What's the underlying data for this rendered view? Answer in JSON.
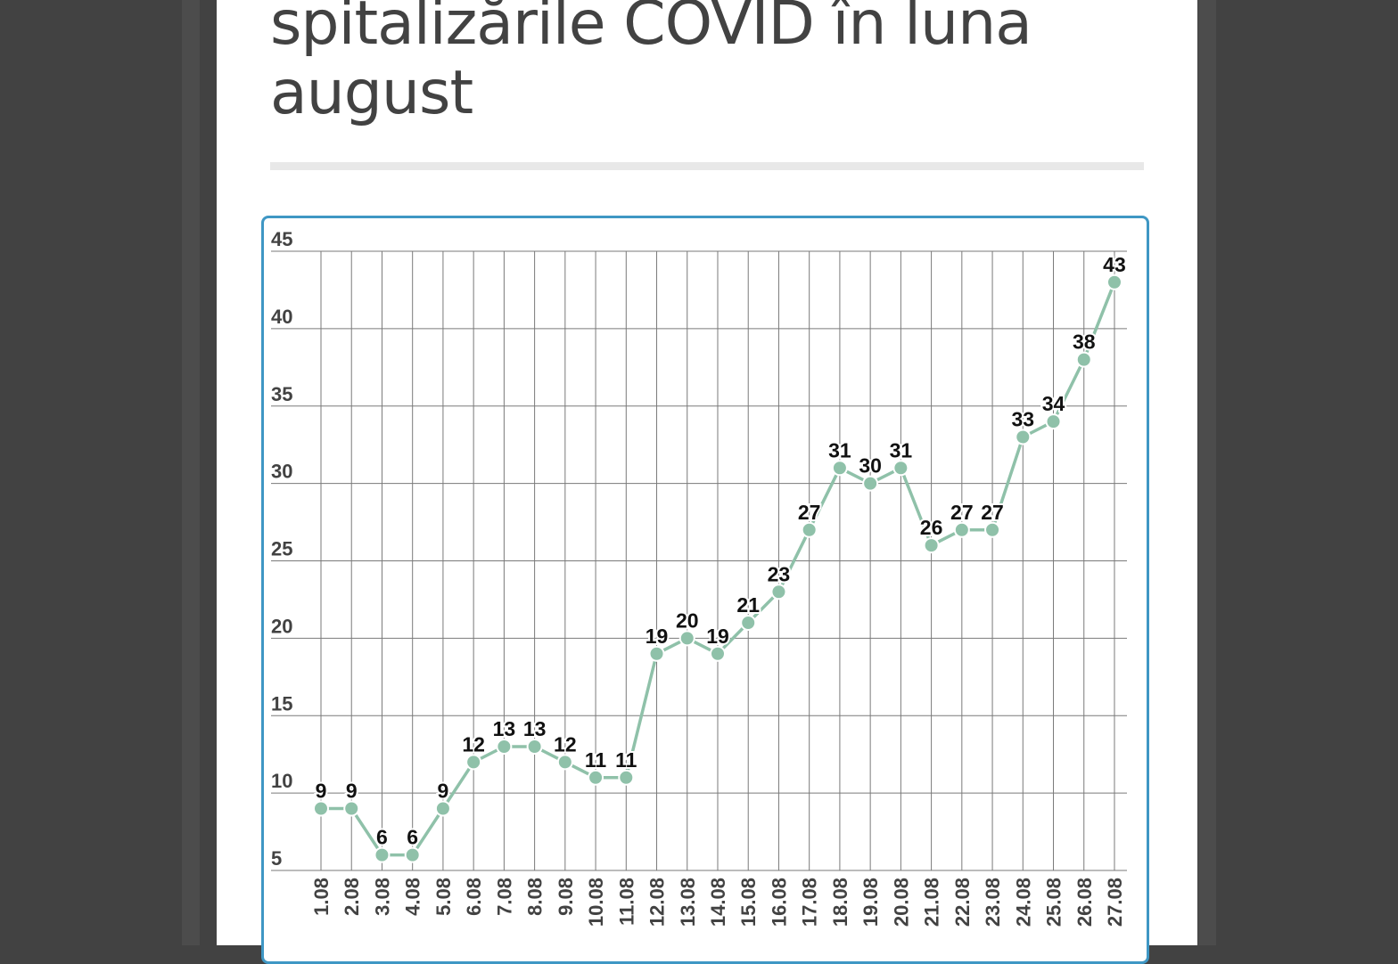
{
  "article": {
    "title_line1": "spitalizările COVID în luna",
    "title_line2": "august"
  },
  "colors": {
    "line": "#8fc1a9",
    "frame": "#3f97c4",
    "grid": "#7a7a7a",
    "text": "#424242"
  },
  "chart_data": {
    "type": "line",
    "title": "",
    "xlabel": "",
    "ylabel": "",
    "ylim": [
      5,
      45
    ],
    "yticks": [
      5,
      10,
      15,
      20,
      25,
      30,
      35,
      40,
      45
    ],
    "grid": true,
    "data_labels": true,
    "categories": [
      "1.08",
      "2.08",
      "3.08",
      "4.08",
      "5.08",
      "6.08",
      "7.08",
      "8.08",
      "9.08",
      "10.08",
      "11.08",
      "12.08",
      "13.08",
      "14.08",
      "15.08",
      "16.08",
      "17.08",
      "18.08",
      "19.08",
      "20.08",
      "21.08",
      "22.08",
      "23.08",
      "24.08",
      "25.08",
      "26.08",
      "27.08"
    ],
    "series": [
      {
        "values": [
          9,
          9,
          6,
          6,
          9,
          12,
          13,
          13,
          12,
          11,
          11,
          19,
          20,
          19,
          21,
          23,
          27,
          31,
          30,
          31,
          26,
          27,
          27,
          33,
          34,
          38,
          43
        ]
      }
    ]
  }
}
